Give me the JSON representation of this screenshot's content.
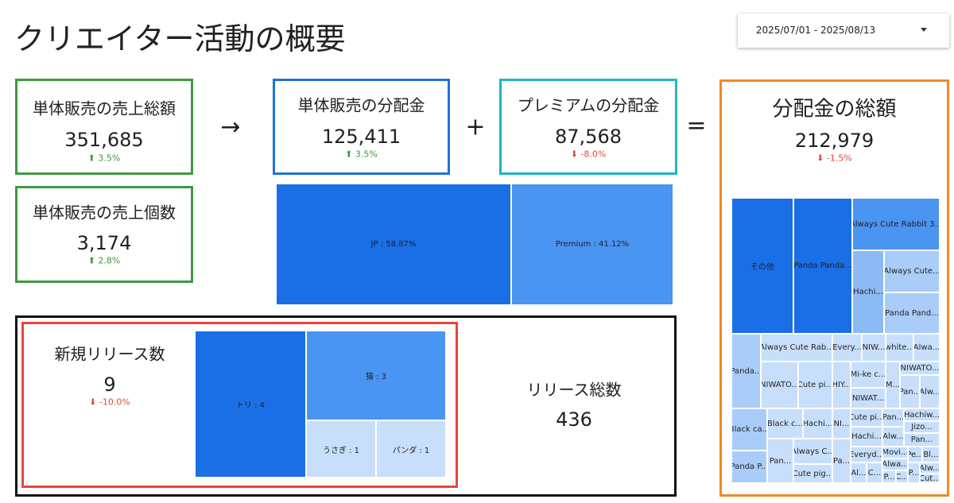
{
  "header": {
    "title": "クリエイター活動の概要",
    "date_range": "2025/07/01 - 2025/08/13"
  },
  "operators": [
    "→",
    "+",
    "="
  ],
  "kpis": [
    {
      "label": "単体販売の売上総額",
      "value": "351,685",
      "change": "⬆ 3.5%"
    },
    {
      "label": "単体販売の売上個数",
      "value": "3,174",
      "change": "⬆ 2.8%"
    },
    {
      "label": "単体販売の分配金",
      "value": "125,411",
      "change": "⬆ 3.5%"
    },
    {
      "label": "プレミアムの分配金",
      "value": "87,568",
      "change": "⬇ -8.0%"
    },
    {
      "label": "分配金の総額",
      "value": "212,979",
      "change": "⬇ -1.5%"
    }
  ],
  "distribution_treemap": {
    "cells": [
      "JP : 58.87%",
      "Premium : 41.12%"
    ]
  },
  "releases": {
    "new_label": "新規リリース数",
    "new_value": "9",
    "new_change": "⬇ -10.0%",
    "total_label": "リリース総数",
    "total_value": "436",
    "treemap": {
      "cells": [
        "トリ : 4",
        "猫 : 3",
        "うさぎ : 1",
        "パンダ : 1"
      ]
    }
  },
  "total_treemap": {
    "cells": [
      "その他",
      "Panda Panda...",
      "Always Cute Rabbit 3...",
      "Hachi...",
      "Always Cute...",
      "Panda Pand...",
      "Panda...",
      "Always Cute Rab...",
      "Every...",
      "NIW...",
      "white...",
      "Alwa...",
      "NIWATO...",
      "Cute pi...",
      "HIY...",
      "Mi-ke c...",
      "NIWAT...",
      "M...",
      "NIWATO...",
      "Pan...",
      "Alw...",
      "Black ca...",
      "Black c...",
      "Hachi...",
      "NI...",
      "Cute pi...",
      "Pan...",
      "Hachiw...",
      "Hachi...",
      "Alw...",
      "Jizo...",
      "Pan...",
      "Pan...",
      "Always C...",
      "Cute pig...",
      "Pa...",
      "Everyd...",
      "Movi...",
      "Pe...",
      "Bl...",
      "Alwa...",
      "Panda P...",
      "Al...",
      "C...",
      "P...",
      "C...",
      "P...",
      "Alw...",
      "Cut..."
    ]
  }
}
